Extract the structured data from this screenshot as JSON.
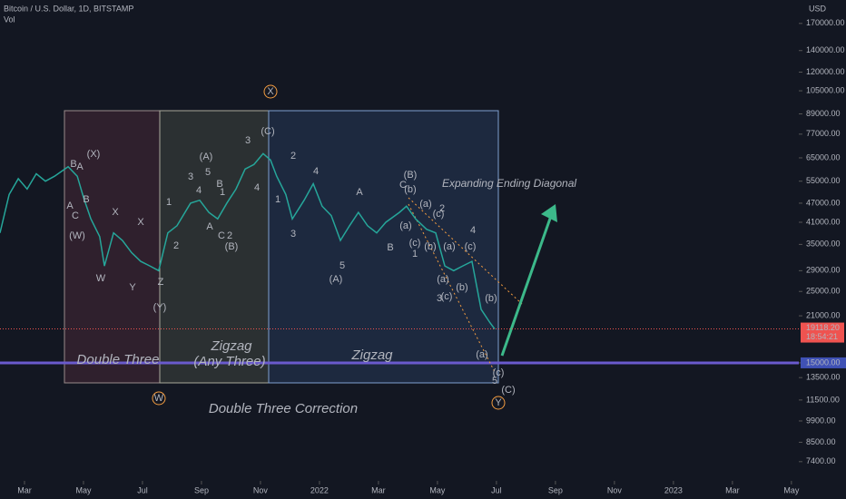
{
  "chart_data": {
    "type": "line",
    "title": "Bitcoin / U.S. Dollar, 1D, BITSTAMP",
    "subtitle": "Vol",
    "y_axis_label": "USD",
    "log_scale": true,
    "grid": false,
    "color": "#26a69a",
    "x": [
      1.17,
      1.48,
      1.79,
      2.09,
      2.4,
      2.71,
      3.02,
      3.48,
      3.79,
      4.0,
      4.25,
      4.55,
      4.71,
      5.02,
      5.32,
      5.63,
      5.94,
      6.25,
      6.55,
      6.86,
      7.17,
      7.63,
      7.94,
      8.25,
      8.55,
      8.86,
      9.17,
      9.48,
      9.78,
      10.09,
      10.34,
      10.55,
      10.86,
      11.08,
      11.48,
      11.79,
      12.09,
      12.4,
      12.71,
      13.02,
      13.32,
      13.63,
      13.94,
      14.25,
      14.71,
      14.95,
      15.26,
      15.63,
      15.94,
      16.25,
      16.55,
      16.86,
      17.17,
      17.48,
      17.78,
      17.94
    ],
    "values": [
      38000,
      50000,
      56000,
      52000,
      58000,
      55000,
      57000,
      61000,
      57000,
      49000,
      42000,
      37000,
      30000,
      38000,
      36000,
      33000,
      31000,
      30000,
      29000,
      38000,
      40000,
      47000,
      48000,
      44000,
      42000,
      47000,
      52000,
      60000,
      62000,
      67000,
      64000,
      57000,
      50000,
      42000,
      48000,
      54000,
      46000,
      43000,
      36000,
      40000,
      44000,
      40000,
      38000,
      41000,
      44000,
      46000,
      42000,
      39000,
      38000,
      30000,
      29000,
      30000,
      31000,
      22000,
      20000,
      19118.2
    ],
    "xlim": [
      1.17,
      28.25
    ],
    "xticks": [
      {
        "value": 2,
        "label": "Mar"
      },
      {
        "value": 4,
        "label": "May"
      },
      {
        "value": 6,
        "label": "Jul"
      },
      {
        "value": 8,
        "label": "Sep"
      },
      {
        "value": 10,
        "label": "Nov"
      },
      {
        "value": 12,
        "label": "2022"
      },
      {
        "value": 14,
        "label": "Mar"
      },
      {
        "value": 16,
        "label": "May"
      },
      {
        "value": 18,
        "label": "Jul"
      },
      {
        "value": 20,
        "label": "Sep"
      },
      {
        "value": 22,
        "label": "Nov"
      },
      {
        "value": 24,
        "label": "2023"
      },
      {
        "value": 26,
        "label": "Mar"
      },
      {
        "value": 28,
        "label": "May"
      }
    ],
    "ylim": [
      6450,
      201000
    ],
    "yticks": [
      {
        "value": 170000,
        "label": "170000.00"
      },
      {
        "value": 140000,
        "label": "140000.00"
      },
      {
        "value": 120000,
        "label": "120000.00"
      },
      {
        "value": 105000,
        "label": "105000.00"
      },
      {
        "value": 89000,
        "label": "89000.00"
      },
      {
        "value": 77000,
        "label": "77000.00"
      },
      {
        "value": 65000,
        "label": "65000.00"
      },
      {
        "value": 55000,
        "label": "55000.00"
      },
      {
        "value": 47000,
        "label": "47000.00"
      },
      {
        "value": 41000,
        "label": "41000.00"
      },
      {
        "value": 35000,
        "label": "35000.00"
      },
      {
        "value": 29000,
        "label": "29000.00"
      },
      {
        "value": 25000,
        "label": "25000.00"
      },
      {
        "value": 21000,
        "label": "21000.00"
      },
      {
        "value": 15000,
        "label": "15000.00"
      },
      {
        "value": 13500,
        "label": "13500.00"
      },
      {
        "value": 11500,
        "label": "11500.00"
      },
      {
        "value": 9900,
        "label": "9900.00"
      },
      {
        "value": 8500,
        "label": "8500.00"
      },
      {
        "value": 7400,
        "label": "7400.00"
      }
    ],
    "last_price": {
      "value": 19118.2,
      "label": "19118.20"
    },
    "countdown": "18:54:21",
    "annotations": [
      {
        "text": "Double Three",
        "color": "#8a8fa0"
      },
      {
        "text": "Zigzag",
        "color": "#d1c9a0"
      },
      {
        "text": "(Any Three)",
        "color": "#d1c9a0"
      },
      {
        "text": "Zigzag",
        "color": "#5b9bd5"
      },
      {
        "text": "Double Three Correction",
        "color": "#f5b041"
      },
      {
        "text": "Expanding Ending Diagonal",
        "color": "#f39c40"
      },
      {
        "text": "X",
        "color": "#f39c40"
      },
      {
        "text": "W",
        "color": "#f39c40"
      },
      {
        "text": "Y",
        "color": "#f39c40"
      },
      {
        "text": "B",
        "color": "#f39c40"
      },
      {
        "text": "A",
        "color": "#5b9bd5"
      },
      {
        "text": "A",
        "color": "#f39c40"
      },
      {
        "text": "C",
        "color": "#f39c40"
      },
      {
        "text": "B",
        "color": "#5b9bd5"
      },
      {
        "text": "(W)",
        "color": "#e0e0e0"
      },
      {
        "text": "(X)",
        "color": "#e0e0e0"
      },
      {
        "text": "X",
        "color": "#26a69a"
      },
      {
        "text": "X",
        "color": "#26a69a"
      },
      {
        "text": "W",
        "color": "#26a69a"
      },
      {
        "text": "Y",
        "color": "#26a69a"
      },
      {
        "text": "Z",
        "color": "#26a69a"
      },
      {
        "text": "(Y)",
        "color": "#e0e0e0"
      },
      {
        "text": "1",
        "color": "#26a69a"
      },
      {
        "text": "2",
        "color": "#5b9bd5"
      },
      {
        "text": "3",
        "color": "#5b9bd5"
      },
      {
        "text": "4",
        "color": "#26a69a"
      },
      {
        "text": "5",
        "color": "#5b9bd5"
      },
      {
        "text": "(A)",
        "color": "#e0e0e0"
      },
      {
        "text": "A",
        "color": "#e0e0e0"
      },
      {
        "text": "C",
        "color": "#e0e0e0"
      },
      {
        "text": "2",
        "color": "#f39c40"
      },
      {
        "text": "(B)",
        "color": "#e0e0e0"
      },
      {
        "text": "B",
        "color": "#f39c40"
      },
      {
        "text": "1",
        "color": "#f39c40"
      },
      {
        "text": "3",
        "color": "#f39c40"
      },
      {
        "text": "4",
        "color": "#f39c40"
      },
      {
        "text": "(C)",
        "color": "#e0e0e0"
      },
      {
        "text": "1",
        "color": "#5b9bd5"
      },
      {
        "text": "2",
        "color": "#5b9bd5"
      },
      {
        "text": "3",
        "color": "#5b9bd5"
      },
      {
        "text": "4",
        "color": "#5b9bd5"
      },
      {
        "text": "5",
        "color": "#5b9bd5"
      },
      {
        "text": "(A)",
        "color": "#5b9bd5"
      },
      {
        "text": "A",
        "color": "#f39c40"
      },
      {
        "text": "B",
        "color": "#f39c40"
      },
      {
        "text": "C",
        "color": "#e0e0e0"
      },
      {
        "text": "(B)",
        "color": "#5b9bd5"
      },
      {
        "text": "(b)",
        "color": "#e0e0e0"
      },
      {
        "text": "(a)",
        "color": "#e0e0e0"
      },
      {
        "text": "(a)",
        "color": "#5b9bd5"
      },
      {
        "text": "(c)",
        "color": "#e0e0e0"
      },
      {
        "text": "1",
        "color": "#f39c40"
      },
      {
        "text": "(c)",
        "color": "#5b9bd5"
      },
      {
        "text": "2",
        "color": "#f39c40"
      },
      {
        "text": "(b)",
        "color": "#e0e0e0"
      },
      {
        "text": "(a)",
        "color": "#e0e0e0"
      },
      {
        "text": "(c)",
        "color": "#e0e0e0"
      },
      {
        "text": "4",
        "color": "#f39c40"
      },
      {
        "text": "(a)",
        "color": "#5b9bd5"
      },
      {
        "text": "(b)",
        "color": "#e0e0e0"
      },
      {
        "text": "(c)",
        "color": "#5b9bd5"
      },
      {
        "text": "3",
        "color": "#f39c40"
      },
      {
        "text": "(b)",
        "color": "#e0e0e0"
      },
      {
        "text": "(a)",
        "color": "#e0e0e0"
      },
      {
        "text": "(c)",
        "color": "#e0e0e0"
      },
      {
        "text": "5",
        "color": "#f39c40"
      },
      {
        "text": "(C)",
        "color": "#5b9bd5"
      }
    ]
  }
}
